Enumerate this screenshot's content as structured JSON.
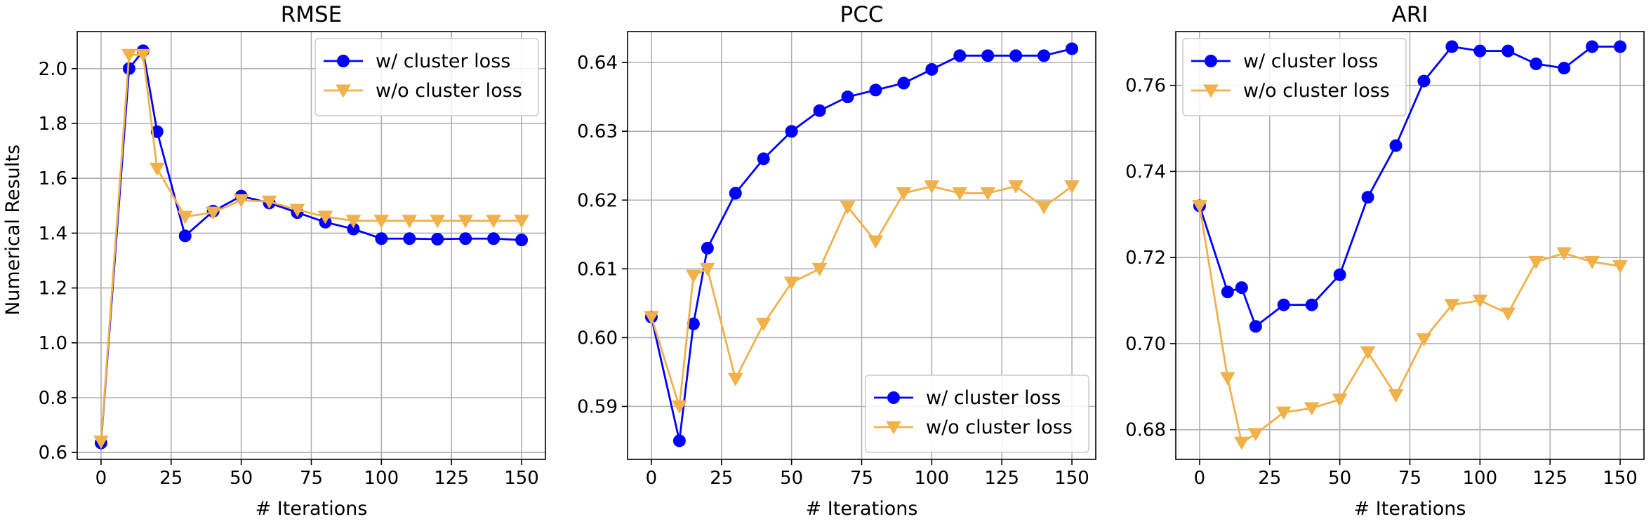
{
  "figure": {
    "ylabel": "Numerical Results"
  },
  "chart_data": [
    {
      "type": "line",
      "title": "RMSE",
      "xlabel": "# Iterations",
      "ylabel": "Numerical Results",
      "xlim": [
        -8.5,
        158.5
      ],
      "ylim": [
        0.575,
        2.135
      ],
      "xticks": [
        0,
        25,
        50,
        75,
        100,
        125,
        150
      ],
      "yticks": [
        0.6,
        0.8,
        1.0,
        1.2,
        1.4,
        1.6,
        1.8,
        2.0
      ],
      "ytick_labels": [
        "0.6",
        "0.8",
        "1.0",
        "1.2",
        "1.4",
        "1.6",
        "1.8",
        "2.0"
      ],
      "grid": true,
      "legend_position": "top-right",
      "x": [
        0,
        10,
        15,
        20,
        30,
        40,
        50,
        60,
        70,
        80,
        90,
        100,
        110,
        120,
        130,
        140,
        150
      ],
      "series": [
        {
          "name": "w/  cluster loss",
          "color": "#0000ff",
          "marker": "circle",
          "values": [
            0.635,
            2.0,
            2.065,
            1.77,
            1.39,
            1.48,
            1.535,
            1.51,
            1.475,
            1.44,
            1.415,
            1.38,
            1.38,
            1.378,
            1.38,
            1.38,
            1.375
          ]
        },
        {
          "name": "w/o cluster loss",
          "color": "#f0b14a",
          "marker": "triangle-down",
          "values": [
            0.64,
            2.05,
            2.05,
            1.635,
            1.46,
            1.475,
            1.52,
            1.515,
            1.485,
            1.46,
            1.445,
            1.445,
            1.445,
            1.445,
            1.445,
            1.445,
            1.445
          ]
        }
      ]
    },
    {
      "type": "line",
      "title": "PCC",
      "xlabel": "# Iterations",
      "ylabel": "",
      "xlim": [
        -8.5,
        158.5
      ],
      "ylim": [
        0.5823,
        0.6445
      ],
      "xticks": [
        0,
        25,
        50,
        75,
        100,
        125,
        150
      ],
      "yticks": [
        0.59,
        0.6,
        0.61,
        0.62,
        0.63,
        0.64
      ],
      "ytick_labels": [
        "0.59",
        "0.60",
        "0.61",
        "0.62",
        "0.63",
        "0.64"
      ],
      "grid": true,
      "legend_position": "bottom-right",
      "x": [
        0,
        10,
        15,
        20,
        30,
        40,
        50,
        60,
        70,
        80,
        90,
        100,
        110,
        120,
        130,
        140,
        150
      ],
      "series": [
        {
          "name": "w/  cluster loss",
          "color": "#0000ff",
          "marker": "circle",
          "values": [
            0.603,
            0.585,
            0.602,
            0.613,
            0.621,
            0.626,
            0.63,
            0.633,
            0.635,
            0.636,
            0.637,
            0.639,
            0.641,
            0.641,
            0.641,
            0.641,
            0.642
          ]
        },
        {
          "name": "w/o cluster loss",
          "color": "#f0b14a",
          "marker": "triangle-down",
          "values": [
            0.603,
            0.59,
            0.609,
            0.61,
            0.594,
            0.602,
            0.608,
            0.61,
            0.619,
            0.614,
            0.621,
            0.622,
            0.621,
            0.621,
            0.622,
            0.619,
            0.622
          ]
        }
      ]
    },
    {
      "type": "line",
      "title": "ARI",
      "xlabel": "# Iterations",
      "ylabel": "",
      "xlim": [
        -8.5,
        158.5
      ],
      "ylim": [
        0.6731,
        0.7725
      ],
      "xticks": [
        0,
        25,
        50,
        75,
        100,
        125,
        150
      ],
      "yticks": [
        0.68,
        0.7,
        0.72,
        0.74,
        0.76
      ],
      "ytick_labels": [
        "0.68",
        "0.70",
        "0.72",
        "0.74",
        "0.76"
      ],
      "grid": true,
      "legend_position": "top-left",
      "x": [
        0,
        10,
        15,
        20,
        30,
        40,
        50,
        60,
        70,
        80,
        90,
        100,
        110,
        120,
        130,
        140,
        150
      ],
      "series": [
        {
          "name": "w/  cluster loss",
          "color": "#0000ff",
          "marker": "circle",
          "values": [
            0.732,
            0.712,
            0.713,
            0.704,
            0.709,
            0.709,
            0.716,
            0.734,
            0.746,
            0.761,
            0.769,
            0.768,
            0.768,
            0.765,
            0.764,
            0.769,
            0.769
          ]
        },
        {
          "name": "w/o cluster loss",
          "color": "#f0b14a",
          "marker": "triangle-down",
          "values": [
            0.732,
            0.692,
            0.677,
            0.679,
            0.684,
            0.685,
            0.687,
            0.698,
            0.688,
            0.701,
            0.709,
            0.71,
            0.707,
            0.719,
            0.721,
            0.719,
            0.718
          ]
        }
      ]
    }
  ]
}
